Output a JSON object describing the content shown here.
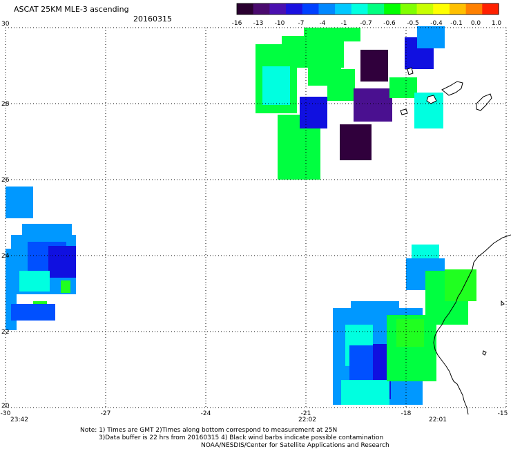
{
  "header": {
    "title": "ASCAT 25KM MLE-3 ascending",
    "date": "20160315"
  },
  "colorbar": {
    "labels": [
      "-16",
      "-13",
      "-10",
      "-7",
      "-4",
      "-1",
      "-0.7",
      "-0.6",
      "-0.5",
      "-0.4",
      "-0.1",
      "0.0",
      "1.0"
    ],
    "colors": [
      "#2a0030",
      "#4a0a6e",
      "#4a10b0",
      "#1a10e0",
      "#0040ff",
      "#0088ff",
      "#00c8ff",
      "#00ffe0",
      "#00ff80",
      "#00ff00",
      "#80ff00",
      "#c8ff00",
      "#ffff00",
      "#ffc000",
      "#ff8000",
      "#ff2000"
    ]
  },
  "axes": {
    "lat_labels": [
      "30",
      "28",
      "26",
      "24",
      "22",
      "20"
    ],
    "lon_labels": [
      "-30",
      "-27",
      "-24",
      "-21",
      "-18",
      "-15"
    ],
    "grid": "dotted"
  },
  "times": [
    "23:42",
    "22:02",
    "22:01"
  ],
  "time_color": "#cc2200",
  "note": {
    "line1": "Note: 1) Times are GMT 2)Times along bottom correspond to measurement at 25N",
    "line2": "3)Data buffer is 22 hrs from 20160315 4) Black wind barbs indicate possible contamination",
    "line3": "NOAA/NESDIS/Center for Satellite Applications and Research"
  },
  "swath_colors": {
    "green": "#00ff40",
    "bright_green": "#20ff20",
    "cyan": "#00ffe0",
    "light_blue": "#0098ff",
    "blue": "#0050ff",
    "deep_blue": "#1010e0",
    "purple": "#4a1090",
    "dark_purple": "#30003c"
  }
}
